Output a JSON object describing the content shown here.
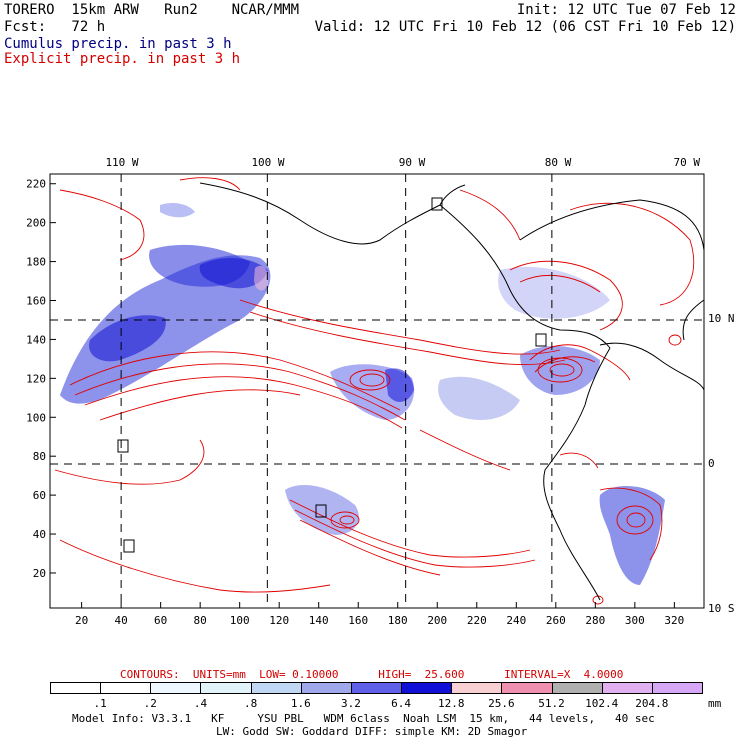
{
  "header": {
    "line1_left": "TORERO  15km ARW   Run2    NCAR/MMM",
    "line1_right": "Init: 12 UTC Tue 07 Feb 12",
    "line2_left": "Fcst:   72 h",
    "line2_right": "Valid: 12 UTC Fri 10 Feb 12 (06 CST Fri 10 Feb 12)",
    "cumulus_label": "Cumulus precip. in past 3 h",
    "explicit_label": "Explicit precip. in past 3 h"
  },
  "colors": {
    "cumulus": "#000080",
    "explicit": "#d40000",
    "coast": "#000000",
    "contour": "#e00000"
  },
  "map": {
    "top_lon_labels": [
      "110 W",
      "100 W",
      "90 W",
      "80 W",
      "70 W"
    ],
    "right_lat_labels": [
      "10 N",
      "0",
      "10 S"
    ],
    "y_ticks": [
      "220",
      "200",
      "180",
      "160",
      "140",
      "120",
      "100",
      "80",
      "60",
      "40",
      "20"
    ],
    "x_ticks": [
      "20",
      "40",
      "60",
      "80",
      "100",
      "120",
      "140",
      "160",
      "180",
      "200",
      "220",
      "240",
      "260",
      "280",
      "300",
      "320"
    ],
    "grid_x_values": [
      40,
      114,
      184,
      258
    ],
    "grid_y_values": [
      150,
      76
    ]
  },
  "contour_info": "CONTOURS:  UNITS=mm  LOW= 0.10000      HIGH=  25.600      INTERVAL=X  4.0000",
  "colorbar": {
    "labels": [
      ".1",
      ".2",
      ".4",
      ".8",
      "1.6",
      "3.2",
      "6.4",
      "12.8",
      "25.6",
      "51.2",
      "102.4",
      "204.8"
    ],
    "colors": [
      "#ffffff",
      "#ffffff",
      "#f0f8ff",
      "#e0f4fa",
      "#c0d8f4",
      "#a0a8ec",
      "#6060e8",
      "#1010d8",
      "#f8d0d4",
      "#f090b0",
      "#b0b0b0",
      "#e0b0f0",
      "#d8a8f8"
    ],
    "unit": "mm"
  },
  "footer": {
    "line1": "Model Info: V3.3.1   KF     YSU PBL   WDM 6class  Noah LSM  15 km,   44 levels,   40 sec",
    "line2": "LW: Godd SW: Goddard DIFF: simple KM: 2D Smagor"
  }
}
